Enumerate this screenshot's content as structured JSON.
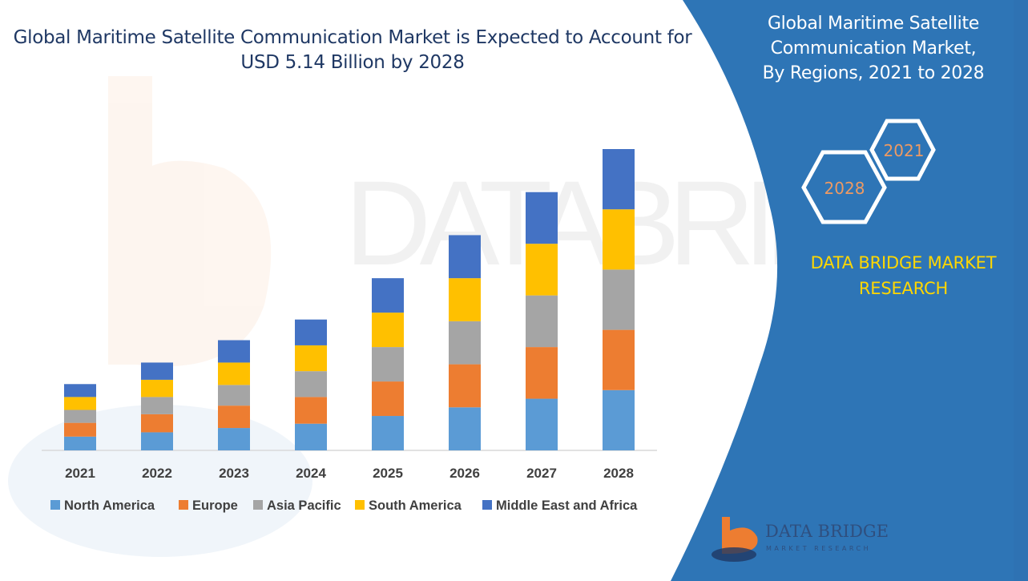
{
  "header": {
    "title_line1": "Global Maritime Satellite Communication Market is Expected to Account for",
    "title_line2": "USD 5.14 Billion by 2028"
  },
  "side_panel": {
    "title_lines": [
      "Global Maritime Satellite",
      "Communication Market,",
      "By Regions, 2021 to 2028"
    ],
    "hex_labels": [
      "2021",
      "2028"
    ],
    "brand_lines": [
      "DATA BRIDGE MARKET",
      "RESEARCH"
    ],
    "logo_text": "DATA BRIDGE",
    "logo_subtext": "MARKET RESEARCH"
  },
  "colors": {
    "panel_blue": "#2e75b6",
    "brand_yellow": "#ffd700",
    "title_navy": "#1f3864"
  },
  "chart_data": {
    "type": "bar",
    "stacked": true,
    "categories": [
      "2021",
      "2022",
      "2023",
      "2024",
      "2025",
      "2026",
      "2027",
      "2028"
    ],
    "series": [
      {
        "name": "North America",
        "color": "#5b9bd5",
        "values": [
          0.8,
          1.05,
          1.3,
          1.55,
          2.0,
          2.5,
          3.0,
          3.5
        ]
      },
      {
        "name": "Europe",
        "color": "#ed7d31",
        "values": [
          0.8,
          1.05,
          1.3,
          1.55,
          2.0,
          2.5,
          3.0,
          3.5
        ]
      },
      {
        "name": "Asia Pacific",
        "color": "#a5a5a5",
        "values": [
          0.75,
          1.0,
          1.2,
          1.5,
          2.0,
          2.5,
          3.0,
          3.5
        ]
      },
      {
        "name": "South America",
        "color": "#ffc000",
        "values": [
          0.75,
          1.0,
          1.3,
          1.5,
          2.0,
          2.5,
          3.0,
          3.5
        ]
      },
      {
        "name": "Middle East and Africa",
        "color": "#4472c4",
        "values": [
          0.75,
          1.0,
          1.3,
          1.5,
          2.0,
          2.5,
          3.0,
          3.5
        ]
      }
    ],
    "ylim": [
      0,
      17.5
    ],
    "grid": false,
    "legend": "bottom"
  }
}
